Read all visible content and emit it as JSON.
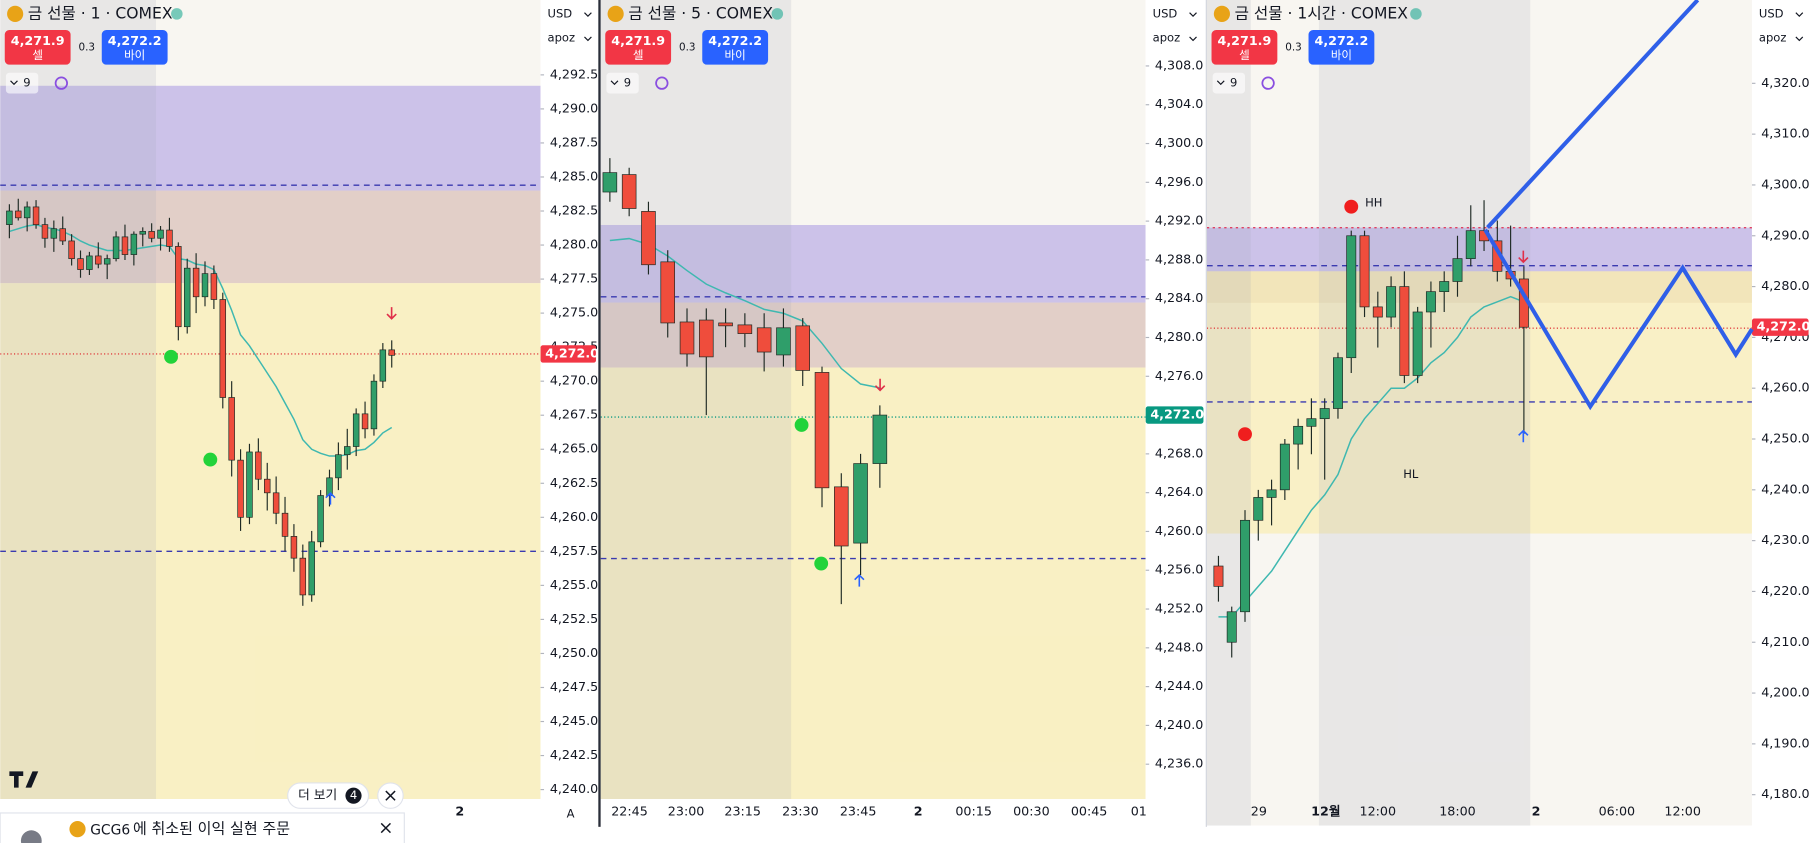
{
  "panels": [
    {
      "title": "금 선물 · 1 · COMEX",
      "sell": {
        "price": "4,271.9",
        "label": "셀"
      },
      "spread": "0.3",
      "buy": {
        "price": "4,272.2",
        "label": "바이"
      },
      "interval": "9",
      "currency": "USD",
      "mode": "apoz",
      "ylim": [
        4239.3,
        4298.0
      ],
      "yticks": [
        {
          "value": 4292.5,
          "label": "4,292.5"
        },
        {
          "value": 4290.0,
          "label": "4,290.0"
        },
        {
          "value": 4287.5,
          "label": "4,287.5"
        },
        {
          "value": 4285.0,
          "label": "4,285.0"
        },
        {
          "value": 4282.5,
          "label": "4,282.5"
        },
        {
          "value": 4280.0,
          "label": "4,280.0"
        },
        {
          "value": 4277.5,
          "label": "4,277.5"
        },
        {
          "value": 4275.0,
          "label": "4,275.0"
        },
        {
          "value": 4272.5,
          "label": "4,272.5"
        },
        {
          "value": 4270.0,
          "label": "4,270.0"
        },
        {
          "value": 4267.5,
          "label": "4,267.5"
        },
        {
          "value": 4265.0,
          "label": "4,265.0"
        },
        {
          "value": 4262.5,
          "label": "4,262.5"
        },
        {
          "value": 4260.0,
          "label": "4,260.0"
        },
        {
          "value": 4257.5,
          "label": "4,257.5"
        },
        {
          "value": 4255.0,
          "label": "4,255.0"
        },
        {
          "value": 4252.5,
          "label": "4,252.5"
        },
        {
          "value": 4250.0,
          "label": "4,250.0"
        },
        {
          "value": 4247.5,
          "label": "4,247.5"
        },
        {
          "value": 4245.0,
          "label": "4,245.0"
        },
        {
          "value": 4242.5,
          "label": "4,242.5"
        },
        {
          "value": 4240.0,
          "label": "4,240.0"
        }
      ],
      "last_price": {
        "value": 4272.0,
        "label": "4,272.0",
        "color": "#f23645"
      },
      "xlabels": [
        "2"
      ],
      "auto": "A",
      "zones": [
        {
          "top": 4291.7,
          "bottom": 4284.0,
          "color": "rgba(150,130,225,0.45)"
        },
        {
          "top": 4284.0,
          "bottom": 4277.2,
          "color": "rgba(200,160,150,0.45)"
        },
        {
          "top": 4277.2,
          "bottom": 4239.3,
          "color": "rgba(250,238,180,0.75)"
        }
      ],
      "levels": [
        {
          "price": 4284.4,
          "color": "#3a3ab0",
          "dash": "5 4"
        },
        {
          "price": 4257.5,
          "color": "#3a3ab0",
          "dash": "5 4"
        },
        {
          "price": 4272.0,
          "color": "#e04040",
          "dash": "1 2"
        }
      ],
      "candles": [
        [
          4281.5,
          4283.0,
          4280.5,
          4282.5
        ],
        [
          4282.5,
          4283.4,
          4281.8,
          4282.0
        ],
        [
          4282.0,
          4283.2,
          4281.0,
          4282.8
        ],
        [
          4282.8,
          4283.3,
          4281.2,
          4281.5
        ],
        [
          4281.5,
          4282.0,
          4279.8,
          4280.5
        ],
        [
          4280.5,
          4281.8,
          4279.5,
          4281.2
        ],
        [
          4281.2,
          4282.1,
          4280.0,
          4280.3
        ],
        [
          4280.3,
          4280.8,
          4278.5,
          4279.0
        ],
        [
          4279.0,
          4279.6,
          4277.6,
          4278.2
        ],
        [
          4278.2,
          4279.5,
          4277.8,
          4279.2
        ],
        [
          4279.2,
          4280.2,
          4278.3,
          4278.6
        ],
        [
          4278.6,
          4279.3,
          4277.5,
          4279.0
        ],
        [
          4279.0,
          4281.0,
          4278.8,
          4280.6
        ],
        [
          4280.6,
          4281.5,
          4278.9,
          4279.3
        ],
        [
          4279.3,
          4281.0,
          4278.5,
          4280.8
        ],
        [
          4280.8,
          4281.3,
          4279.9,
          4281.0
        ],
        [
          4281.0,
          4281.6,
          4280.2,
          4280.5
        ],
        [
          4280.5,
          4281.4,
          4279.6,
          4281.1
        ],
        [
          4281.1,
          4282.0,
          4279.5,
          4279.9
        ],
        [
          4279.9,
          4280.2,
          4273.0,
          4274.0
        ],
        [
          4274.0,
          4279.0,
          4273.5,
          4278.3
        ],
        [
          4278.3,
          4279.4,
          4275.0,
          4276.2
        ],
        [
          4276.2,
          4278.8,
          4275.5,
          4277.9
        ],
        [
          4277.9,
          4278.5,
          4275.3,
          4276.0
        ],
        [
          4276.0,
          4276.5,
          4268.0,
          4268.8
        ],
        [
          4268.8,
          4270.0,
          4263.0,
          4264.2
        ],
        [
          4264.2,
          4265.0,
          4259.0,
          4260.0
        ],
        [
          4260.0,
          4265.4,
          4259.5,
          4264.8
        ],
        [
          4264.8,
          4265.8,
          4262.0,
          4262.8
        ],
        [
          4262.8,
          4264.0,
          4260.5,
          4261.8
        ],
        [
          4261.8,
          4263.0,
          4259.5,
          4260.3
        ],
        [
          4260.3,
          4261.5,
          4257.5,
          4258.6
        ],
        [
          4258.6,
          4259.5,
          4256.0,
          4257.0
        ],
        [
          4257.0,
          4258.0,
          4253.5,
          4254.3
        ],
        [
          4254.3,
          4259.0,
          4253.8,
          4258.2
        ],
        [
          4258.2,
          4262.0,
          4257.8,
          4261.6
        ],
        [
          4261.6,
          4263.5,
          4260.8,
          4262.9
        ],
        [
          4262.9,
          4265.5,
          4262.0,
          4264.6
        ],
        [
          4264.6,
          4266.5,
          4263.5,
          4265.2
        ],
        [
          4265.2,
          4268.0,
          4264.5,
          4267.6
        ],
        [
          4267.6,
          4268.5,
          4265.8,
          4266.5
        ],
        [
          4266.5,
          4270.5,
          4266.0,
          4270.0
        ],
        [
          4270.0,
          4272.8,
          4269.5,
          4272.3
        ],
        [
          4272.3,
          4273.0,
          4271.0,
          4271.9
        ]
      ],
      "ema": [
        4281.0,
        4281.2,
        4281.4,
        4281.5,
        4281.3,
        4281.2,
        4281.0,
        4280.7,
        4280.3,
        4280.0,
        4279.8,
        4279.6,
        4279.6,
        4279.6,
        4279.7,
        4279.8,
        4279.9,
        4280.0,
        4279.9,
        4279.0,
        4278.9,
        4278.6,
        4278.5,
        4278.2,
        4276.8,
        4275.2,
        4273.4,
        4272.6,
        4271.6,
        4270.6,
        4269.6,
        4268.4,
        4267.2,
        4265.7,
        4265.0,
        4264.7,
        4264.5,
        4264.5,
        4264.6,
        4264.9,
        4265.0,
        4265.5,
        4266.2,
        4266.6
      ]
    },
    {
      "title": "금 선물 · 5 · COMEX",
      "sell": {
        "price": "4,271.9",
        "label": "셀"
      },
      "spread": "0.3",
      "buy": {
        "price": "4,272.2",
        "label": "바이"
      },
      "interval": "9",
      "currency": "USD",
      "mode": "apoz",
      "ylim": [
        4232.4,
        4314.8
      ],
      "yticks": [
        {
          "value": 4308.0,
          "label": "4,308.0"
        },
        {
          "value": 4304.0,
          "label": "4,304.0"
        },
        {
          "value": 4300.0,
          "label": "4,300.0"
        },
        {
          "value": 4296.0,
          "label": "4,296.0"
        },
        {
          "value": 4292.0,
          "label": "4,292.0"
        },
        {
          "value": 4288.0,
          "label": "4,288.0"
        },
        {
          "value": 4284.0,
          "label": "4,284.0"
        },
        {
          "value": 4280.0,
          "label": "4,280.0"
        },
        {
          "value": 4276.0,
          "label": "4,276.0"
        },
        {
          "value": 4272.0,
          "label": "4,272.0"
        },
        {
          "value": 4268.0,
          "label": "4,268.0"
        },
        {
          "value": 4264.0,
          "label": "4,264.0"
        },
        {
          "value": 4260.0,
          "label": "4,260.0"
        },
        {
          "value": 4256.0,
          "label": "4,256.0"
        },
        {
          "value": 4252.0,
          "label": "4,252.0"
        },
        {
          "value": 4248.0,
          "label": "4,248.0"
        },
        {
          "value": 4244.0,
          "label": "4,244.0"
        },
        {
          "value": 4240.0,
          "label": "4,240.0"
        },
        {
          "value": 4236.0,
          "label": "4,236.0"
        }
      ],
      "last_price": {
        "value": 4272.0,
        "label": "4,272.0",
        "color": "#089981"
      },
      "xlabels": [
        "22:45",
        "23:00",
        "23:15",
        "23:30",
        "23:45",
        "2",
        "00:15",
        "00:30",
        "00:45",
        "01"
      ],
      "zones": [
        {
          "top": 4291.6,
          "bottom": 4283.6,
          "color": "rgba(150,130,225,0.45)"
        },
        {
          "top": 4283.6,
          "bottom": 4276.9,
          "color": "rgba(200,160,150,0.45)"
        },
        {
          "top": 4276.9,
          "bottom": 4232.4,
          "color": "rgba(250,238,180,0.75)"
        }
      ],
      "levels": [
        {
          "price": 4284.2,
          "color": "#3a3ab0",
          "dash": "5 4"
        },
        {
          "price": 4257.2,
          "color": "#3a3ab0",
          "dash": "5 4"
        },
        {
          "price": 4271.8,
          "color": "#089981",
          "dash": "1 2"
        }
      ],
      "candles": [
        [
          4295.0,
          4298.5,
          4294.0,
          4297.0
        ],
        [
          4296.8,
          4297.5,
          4292.5,
          4293.3
        ],
        [
          4293.0,
          4294.0,
          4286.5,
          4287.5
        ],
        [
          4287.8,
          4289.0,
          4280.0,
          4281.5
        ],
        [
          4281.6,
          4283.0,
          4277.0,
          4278.3
        ],
        [
          4281.8,
          4283.0,
          4272.0,
          4278.0
        ],
        [
          4281.5,
          4283.0,
          4279.0,
          4281.2
        ],
        [
          4281.3,
          4282.5,
          4279.0,
          4280.4
        ],
        [
          4281.0,
          4282.5,
          4276.5,
          4278.5
        ],
        [
          4278.2,
          4283.0,
          4277.0,
          4281.0
        ],
        [
          4281.2,
          4282.0,
          4275.0,
          4276.6
        ],
        [
          4276.4,
          4277.0,
          4262.5,
          4264.5
        ],
        [
          4264.6,
          4266.0,
          4252.5,
          4258.5
        ],
        [
          4258.8,
          4268.0,
          4255.5,
          4267.0
        ],
        [
          4267.0,
          4273.0,
          4264.5,
          4272.0
        ]
      ],
      "ema": [
        4290.0,
        4290.2,
        4289.6,
        4288.4,
        4286.9,
        4285.5,
        4284.6,
        4283.8,
        4282.9,
        4282.5,
        4281.7,
        4279.4,
        4276.8,
        4275.2,
        4274.8
      ]
    },
    {
      "title": "금 선물 · 1시간 · COMEX",
      "sell": {
        "price": "4,271.9",
        "label": "셀"
      },
      "spread": "0.3",
      "buy": {
        "price": "4,272.2",
        "label": "바이"
      },
      "interval": "9",
      "currency": "USD",
      "mode": "apoz",
      "ylim": [
        4173.9,
        4336.4
      ],
      "yticks": [
        {
          "value": 4320.0,
          "label": "4,320.0"
        },
        {
          "value": 4310.0,
          "label": "4,310.0"
        },
        {
          "value": 4300.0,
          "label": "4,300.0"
        },
        {
          "value": 4290.0,
          "label": "4,290.0"
        },
        {
          "value": 4280.0,
          "label": "4,280.0"
        },
        {
          "value": 4270.0,
          "label": "4,270.0"
        },
        {
          "value": 4260.0,
          "label": "4,260.0"
        },
        {
          "value": 4250.0,
          "label": "4,250.0"
        },
        {
          "value": 4240.0,
          "label": "4,240.0"
        },
        {
          "value": 4230.0,
          "label": "4,230.0"
        },
        {
          "value": 4220.0,
          "label": "4,220.0"
        },
        {
          "value": 4210.0,
          "label": "4,210.0"
        },
        {
          "value": 4200.0,
          "label": "4,200.0"
        },
        {
          "value": 4190.0,
          "label": "4,190.0"
        },
        {
          "value": 4180.0,
          "label": "4,180.0"
        }
      ],
      "last_price": {
        "value": 4272.0,
        "label": "4,272.0",
        "color": "#f23645"
      },
      "xlabels": [
        "29",
        "12월",
        "12:00",
        "18:00",
        "2",
        "06:00",
        "12:00"
      ],
      "annotations": [
        "HH",
        "HL"
      ],
      "zones": [
        {
          "top": 4291.6,
          "bottom": 4283.0,
          "color": "rgba(150,130,225,0.45)"
        },
        {
          "top": 4283.0,
          "bottom": 4276.8,
          "color": "rgba(200,160,150,0.45)"
        },
        {
          "top": 4283.0,
          "bottom": 4231.4,
          "color": "rgba(250,238,180,0.7)"
        }
      ],
      "levels": [
        {
          "price": 4291.6,
          "color": "#e04060",
          "dash": "2 3"
        },
        {
          "price": 4284.1,
          "color": "#3a3ab0",
          "dash": "5 4"
        },
        {
          "price": 4271.8,
          "color": "#e04040",
          "dash": "1 2"
        },
        {
          "price": 4257.3,
          "color": "#3a3ab0",
          "dash": "5 4"
        }
      ],
      "candles": [
        [
          4225,
          4227,
          4218,
          4221
        ],
        [
          4210,
          4217,
          4207,
          4216
        ],
        [
          4216,
          4236,
          4214,
          4234
        ],
        [
          4234,
          4240,
          4230,
          4238.5
        ],
        [
          4238.5,
          4242,
          4233,
          4240
        ],
        [
          4240,
          4250,
          4238,
          4249
        ],
        [
          4249,
          4254,
          4244,
          4252.5
        ],
        [
          4252.5,
          4258,
          4247,
          4254
        ],
        [
          4254,
          4258,
          4242,
          4256
        ],
        [
          4256,
          4267,
          4254,
          4266
        ],
        [
          4266,
          4291,
          4263,
          4290
        ],
        [
          4290,
          4291,
          4274,
          4276
        ],
        [
          4276,
          4279,
          4268,
          4274
        ],
        [
          4274,
          4282,
          4272,
          4280
        ],
        [
          4280,
          4283,
          4261,
          4262.5
        ],
        [
          4262.5,
          4276,
          4261,
          4275
        ],
        [
          4275,
          4281,
          4268,
          4279
        ],
        [
          4279,
          4283,
          4275,
          4281
        ],
        [
          4281,
          4290,
          4278,
          4285.5
        ],
        [
          4285.5,
          4296,
          4284,
          4291
        ],
        [
          4291,
          4297,
          4287,
          4289
        ],
        [
          4289,
          4293,
          4281,
          4283
        ],
        [
          4283,
          4292,
          4280,
          4281.5
        ],
        [
          4281.5,
          4284,
          4251,
          4272
        ]
      ],
      "ema": [
        4215,
        4215,
        4218,
        4221,
        4224,
        4228,
        4232,
        4236,
        4239,
        4243,
        4250,
        4254,
        4257,
        4260,
        4260,
        4262,
        4265,
        4267,
        4270,
        4274,
        4276,
        4277,
        4278,
        4277
      ]
    }
  ],
  "up_color": "#2f9e6a",
  "down_color": "#ef4d3c",
  "ema_color": "#3fb8b0",
  "more": {
    "label": "더 보기",
    "count": 4
  },
  "toast": {
    "symbol": "GCG6",
    "message": "에 취소된 이익 실현 주문"
  }
}
